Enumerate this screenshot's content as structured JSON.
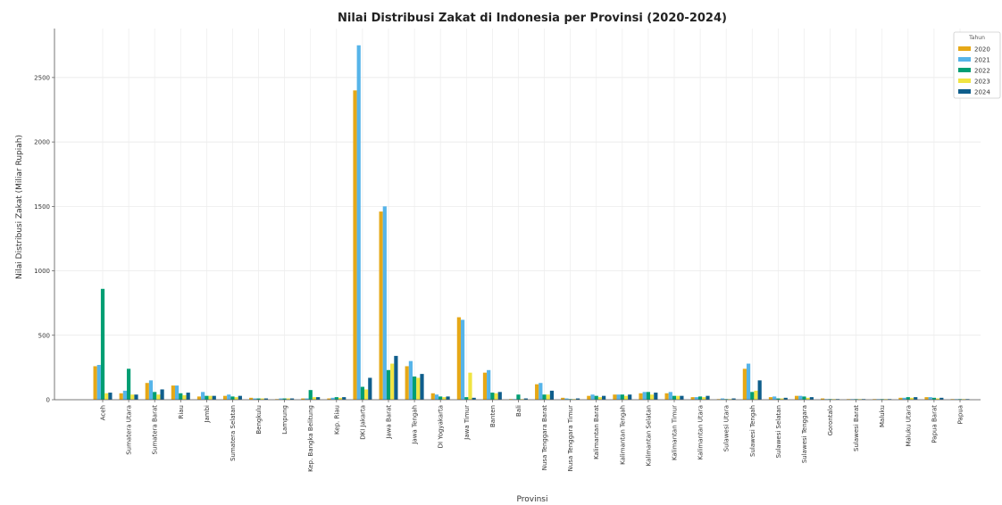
{
  "chart_data": {
    "type": "bar",
    "title": "Nilai Distribusi Zakat di Indonesia per Provinsi (2020-2024)",
    "xlabel": "Provinsi",
    "ylabel": "Nilai Distribusi Zakat (Miliar Rupiah)",
    "ylim": [
      0,
      2880
    ],
    "yticks": [
      0,
      500,
      1000,
      1500,
      2000,
      2500
    ],
    "grid": true,
    "legend": {
      "title": "Tahun",
      "placement": "top-right"
    },
    "categories": [
      "Aceh",
      "Sumatera Utara",
      "Sumatera Barat",
      "Riau",
      "Jambi",
      "Sumatera Selatan",
      "Bengkulu",
      "Lampung",
      "Kep. Bangka Belitung",
      "Kep. Riau",
      "DKI Jakarta",
      "Jawa Barat",
      "Jawa Tengah",
      "DI Yogyakarta",
      "Jawa Timur",
      "Banten",
      "Bali",
      "Nusa Tenggara Barat",
      "Nusa Tenggara Timur",
      "Kalimantan Barat",
      "Kalimantan Tengah",
      "Kalimantan Selatan",
      "Kalimantan Timur",
      "Kalimantan Utara",
      "Sulawesi Utara",
      "Sulawesi Tengah",
      "Sulawesi Selatan",
      "Sulawesi Tenggara",
      "Gorontalo",
      "Sulawesi Barat",
      "Maluku",
      "Maluku Utara",
      "Papua Barat",
      "Papua"
    ],
    "series": [
      {
        "name": "2020",
        "color": "#E6A817",
        "values": [
          260,
          50,
          130,
          110,
          25,
          30,
          15,
          5,
          10,
          10,
          2400,
          1460,
          260,
          50,
          640,
          210,
          5,
          120,
          15,
          30,
          40,
          50,
          50,
          20,
          5,
          240,
          20,
          30,
          10,
          5,
          5,
          15,
          20,
          5
        ]
      },
      {
        "name": "2021",
        "color": "#56B4E9",
        "values": [
          270,
          70,
          150,
          110,
          60,
          40,
          10,
          10,
          10,
          15,
          2750,
          1500,
          300,
          40,
          620,
          230,
          5,
          130,
          10,
          40,
          40,
          60,
          60,
          20,
          10,
          280,
          25,
          30,
          5,
          5,
          5,
          15,
          20,
          5
        ]
      },
      {
        "name": "2022",
        "color": "#009E73",
        "values": [
          860,
          240,
          60,
          50,
          30,
          25,
          10,
          10,
          75,
          20,
          100,
          230,
          180,
          25,
          20,
          55,
          40,
          40,
          5,
          30,
          40,
          60,
          30,
          25,
          5,
          60,
          10,
          25,
          5,
          5,
          5,
          20,
          15,
          5
        ]
      },
      {
        "name": "2023",
        "color": "#F0E442",
        "values": [
          50,
          40,
          40,
          35,
          30,
          20,
          10,
          10,
          20,
          15,
          80,
          280,
          170,
          20,
          210,
          50,
          5,
          40,
          5,
          20,
          30,
          40,
          30,
          20,
          5,
          70,
          10,
          15,
          5,
          5,
          5,
          15,
          10,
          5
        ]
      },
      {
        "name": "2024",
        "color": "#0F5E8C",
        "values": [
          55,
          40,
          80,
          55,
          30,
          30,
          10,
          10,
          20,
          20,
          170,
          340,
          200,
          25,
          15,
          60,
          10,
          70,
          10,
          30,
          40,
          55,
          30,
          30,
          10,
          150,
          15,
          20,
          5,
          5,
          5,
          20,
          15,
          5
        ]
      }
    ]
  }
}
